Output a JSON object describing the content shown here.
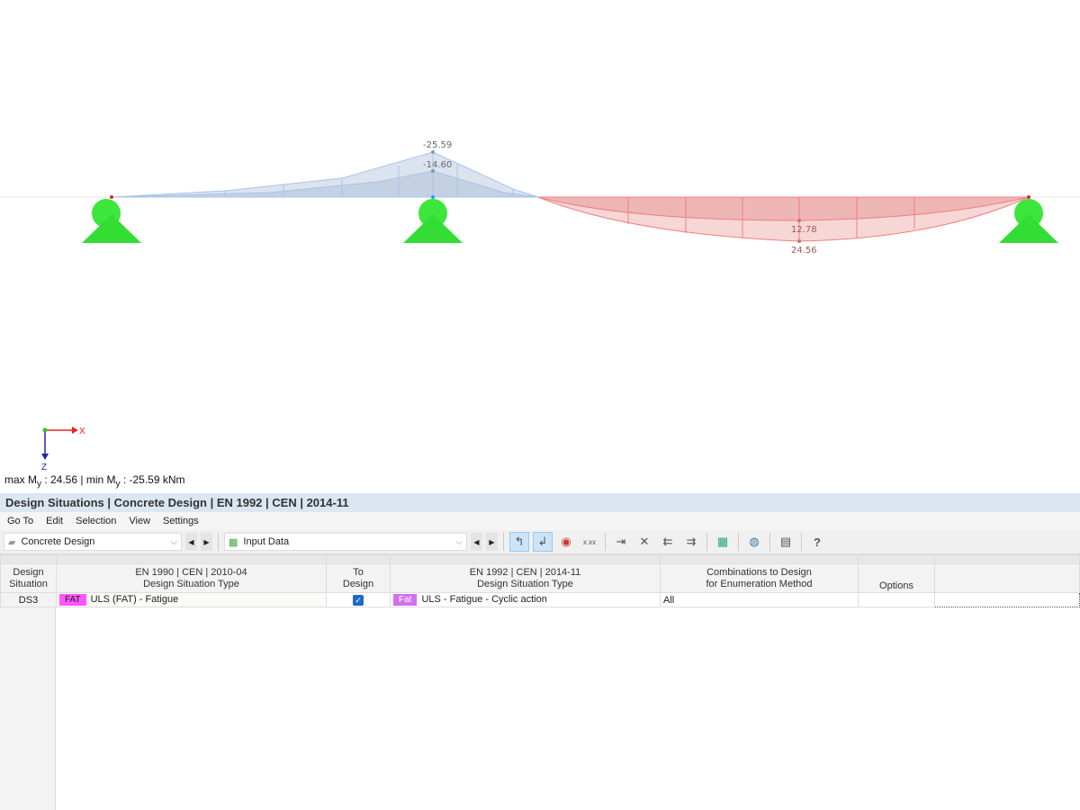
{
  "viewport": {
    "labels": {
      "neg_max": "-25.59",
      "neg_inner": "-14.60",
      "pos_inner": "12.78",
      "pos_max": "24.56"
    },
    "axes": {
      "x": "X",
      "z": "Z"
    },
    "summary": {
      "pre": "max M",
      "sub": "y",
      "mid": " : 24.56 | min M",
      "sub2": "y",
      "post": " : -25.59 kNm"
    },
    "colors": {
      "negative": "#a9c4e8",
      "positive": "#f08080",
      "support": "#33dd33"
    }
  },
  "panel": {
    "title": "Design Situations | Concrete Design | EN 1992 | CEN | 2014-11",
    "menu": [
      "Go To",
      "Edit",
      "Selection",
      "View",
      "Settings"
    ],
    "module_combo": "Concrete Design",
    "view_combo": "Input Data",
    "columns": {
      "c1": [
        "Design",
        "Situation"
      ],
      "c2": [
        "EN 1990 | CEN | 2010-04",
        "Design Situation Type"
      ],
      "c3": [
        "To",
        "Design"
      ],
      "c4": [
        "EN 1992 | CEN | 2014-11",
        "Design Situation Type"
      ],
      "c5": [
        "Combinations to Design",
        "for Enumeration Method"
      ],
      "c6": "Options"
    },
    "rows": [
      {
        "id": "DS3",
        "badge1": "FAT",
        "badge1_color": "#ff55ff",
        "type1": "ULS (FAT) - Fatigue",
        "to_design": true,
        "badge2": "Fat",
        "badge2_color": "#d070f0",
        "type2": "ULS - Fatigue - Cyclic action",
        "combos": "All",
        "options": ""
      }
    ]
  }
}
